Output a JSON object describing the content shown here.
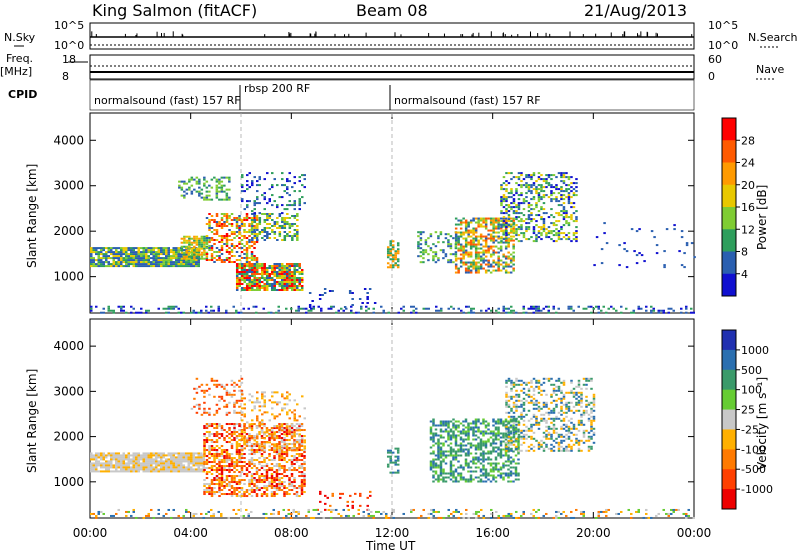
{
  "header": {
    "station": "King Salmon (fitACF)",
    "beam": "Beam 08",
    "date": "21/Aug/2013"
  },
  "strip_labels": {
    "nsky": "N.Sky",
    "nsky_hi": "10^5",
    "nsky_lo": "10^0",
    "nsky_hi_r": "10^5",
    "nsky_lo_r": "10^0",
    "nsearch": "N.Search",
    "freq": "Freq.",
    "freq_unit": "[MHz]",
    "freq_hi": "18",
    "freq_lo": "8",
    "nave_hi": "60",
    "nave_lo": "0",
    "nave": "Nave",
    "cpid": "CPID"
  },
  "cpid_modes": [
    {
      "label": "normalsound (fast) 157 RF"
    },
    {
      "label": "rbsp 200 RF"
    },
    {
      "label": "normalsound (fast) 157 RF"
    }
  ],
  "power_colorbar": {
    "title": "Power [dB]",
    "ticks": [
      "28",
      "24",
      "20",
      "16",
      "12",
      "8",
      "4"
    ],
    "colors": [
      "#ff0000",
      "#ff5a00",
      "#ff9a00",
      "#e8c800",
      "#7fcc33",
      "#2e9e5c",
      "#2a5fb0",
      "#1010d0"
    ]
  },
  "velocity_colorbar": {
    "title": "Velocity [m s⁻¹]",
    "ticks": [
      "1000",
      "500",
      "100",
      "25",
      "-25",
      "-100",
      "-500",
      "-1000"
    ],
    "colors": [
      "#2030b0",
      "#2a6fb0",
      "#3a9a6a",
      "#66cc33",
      "#c8c8c8",
      "#ffb000",
      "#ff7a00",
      "#ff4000",
      "#ee0000"
    ]
  },
  "chart_data": {
    "type": "heatmap",
    "xlabel": "Time UT",
    "ylabel": "Slant Range [km]",
    "x_ticks": [
      "00:00",
      "04:00",
      "08:00",
      "12:00",
      "16:00",
      "20:00",
      "00:00"
    ],
    "xlim": [
      0,
      24
    ],
    "ylim": [
      200,
      4600
    ],
    "y_ticks": [
      1000,
      2000,
      3000,
      4000
    ],
    "panels": [
      {
        "name": "Power [dB]",
        "regions": [
          {
            "t0": 0.0,
            "t1": 4.3,
            "r0": 1200,
            "r1": 1700,
            "value": "8-16"
          },
          {
            "t0": 4.5,
            "t1": 6.8,
            "r0": 1400,
            "r1": 2400,
            "value": "16-28"
          },
          {
            "t0": 5.8,
            "t1": 8.5,
            "r0": 700,
            "r1": 1300,
            "value": "12-28"
          },
          {
            "t0": 6.0,
            "t1": 8.3,
            "r0": 1700,
            "r1": 3300,
            "value": "4-12"
          },
          {
            "t0": 14.5,
            "t1": 16.7,
            "r0": 1100,
            "r1": 2300,
            "value": "12-24"
          },
          {
            "t0": 16.3,
            "t1": 19.3,
            "r0": 1800,
            "r1": 3300,
            "value": "4-20"
          }
        ]
      },
      {
        "name": "Velocity [m s-1]",
        "regions": [
          {
            "t0": 0.0,
            "t1": 4.5,
            "r0": 1200,
            "r1": 1700,
            "value": "-25..25"
          },
          {
            "t0": 4.5,
            "t1": 8.5,
            "r0": 700,
            "r1": 2400,
            "value": "-500..-100"
          },
          {
            "t0": 14.0,
            "t1": 17.0,
            "r0": 1000,
            "r1": 2400,
            "value": "100..500"
          },
          {
            "t0": 16.5,
            "t1": 20.0,
            "r0": 1700,
            "r1": 3300,
            "value": "100..500"
          }
        ]
      }
    ]
  }
}
